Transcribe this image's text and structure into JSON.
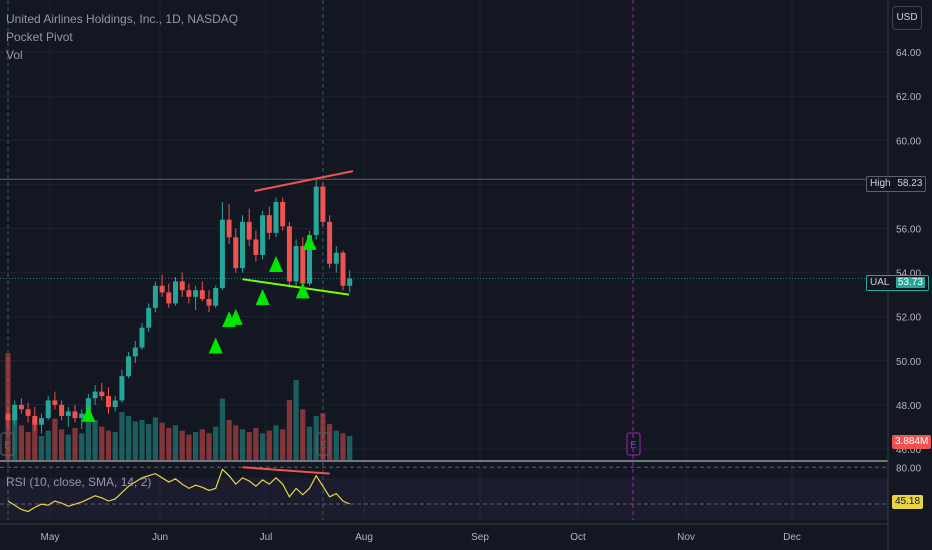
{
  "legend": {
    "title": "United Airlines Holdings, Inc., 1D, NASDAQ",
    "indicator1": "Pocket Pivot",
    "indicator2": "Vol"
  },
  "currency_button": "USD",
  "price_axis": {
    "labels": [
      "64.00",
      "62.00",
      "60.00",
      "58.00",
      "56.00",
      "54.00",
      "52.00",
      "50.00",
      "48.00",
      "46.00"
    ],
    "high_label": "High",
    "high_value": "58.23",
    "ticker_label": "UAL",
    "last_value": "53.73",
    "volume_value": "3.884M"
  },
  "rsi": {
    "legend": "RSI (10, close, SMA, 14, 2)",
    "axis_labels": [
      "80.00",
      "45.18"
    ],
    "value": "45.18"
  },
  "time_axis": {
    "labels": [
      "May",
      "Jun",
      "Jul",
      "Aug",
      "Sep",
      "Oct",
      "Nov",
      "Dec"
    ]
  },
  "earnings_marker": "E",
  "colors": {
    "background": "#131722",
    "up": "#26a69a",
    "down": "#ef5350",
    "signal": "#00e600",
    "trendline_upper": "#ef5350",
    "trendline_lower": "#76ff03",
    "rsi_line": "#e8d347",
    "earnings_future": "#9c27b0"
  },
  "chart_data": {
    "type": "candlestick",
    "ylim": [
      45.5,
      65.0
    ],
    "current_price": 53.73,
    "high_marker": 58.23,
    "candles": [
      [
        47.6,
        47.9,
        46.9,
        47.3
      ],
      [
        47.3,
        48.2,
        47.1,
        48.0
      ],
      [
        48.0,
        48.3,
        47.6,
        47.8
      ],
      [
        47.8,
        48.1,
        47.2,
        47.5
      ],
      [
        47.5,
        47.9,
        46.8,
        47.1
      ],
      [
        47.1,
        47.6,
        46.7,
        47.4
      ],
      [
        47.4,
        48.4,
        47.3,
        48.2
      ],
      [
        48.2,
        48.6,
        47.8,
        48.0
      ],
      [
        48.0,
        48.2,
        47.3,
        47.5
      ],
      [
        47.5,
        47.9,
        47.0,
        47.7
      ],
      [
        47.7,
        48.0,
        47.2,
        47.4
      ],
      [
        47.4,
        47.8,
        46.9,
        47.6
      ],
      [
        47.6,
        48.5,
        47.5,
        48.3
      ],
      [
        48.3,
        48.9,
        48.0,
        48.6
      ],
      [
        48.6,
        49.0,
        48.2,
        48.4
      ],
      [
        48.4,
        48.8,
        47.6,
        47.9
      ],
      [
        47.9,
        48.4,
        47.7,
        48.2
      ],
      [
        48.2,
        49.6,
        48.1,
        49.3
      ],
      [
        49.3,
        50.4,
        49.2,
        50.2
      ],
      [
        50.2,
        50.9,
        49.9,
        50.6
      ],
      [
        50.6,
        51.7,
        50.5,
        51.5
      ],
      [
        51.5,
        52.6,
        51.3,
        52.4
      ],
      [
        52.4,
        53.6,
        52.2,
        53.4
      ],
      [
        53.4,
        53.9,
        52.9,
        53.1
      ],
      [
        53.1,
        53.5,
        52.4,
        52.6
      ],
      [
        52.6,
        53.8,
        52.5,
        53.6
      ],
      [
        53.6,
        54.0,
        52.9,
        53.2
      ],
      [
        53.2,
        53.5,
        52.6,
        52.9
      ],
      [
        52.9,
        53.4,
        52.3,
        53.2
      ],
      [
        53.2,
        53.6,
        52.7,
        52.8
      ],
      [
        52.8,
        53.2,
        52.2,
        52.5
      ],
      [
        52.5,
        53.4,
        52.4,
        53.3
      ],
      [
        53.3,
        57.2,
        53.2,
        56.4
      ],
      [
        56.4,
        57.1,
        55.3,
        55.6
      ],
      [
        55.6,
        56.0,
        54.0,
        54.2
      ],
      [
        54.2,
        56.6,
        54.0,
        56.3
      ],
      [
        56.3,
        56.9,
        55.2,
        55.5
      ],
      [
        55.5,
        55.9,
        54.5,
        54.8
      ],
      [
        54.8,
        56.8,
        54.6,
        56.6
      ],
      [
        56.6,
        57.0,
        55.5,
        55.8
      ],
      [
        55.8,
        57.4,
        55.6,
        57.2
      ],
      [
        57.2,
        57.4,
        55.9,
        56.1
      ],
      [
        56.1,
        56.3,
        53.4,
        53.6
      ],
      [
        53.6,
        55.5,
        53.4,
        55.2
      ],
      [
        55.2,
        55.6,
        53.2,
        53.5
      ],
      [
        53.5,
        55.9,
        53.4,
        55.7
      ],
      [
        55.7,
        58.2,
        55.5,
        57.9
      ],
      [
        57.9,
        58.1,
        56.1,
        56.3
      ],
      [
        56.3,
        56.6,
        54.2,
        54.4
      ],
      [
        54.4,
        55.2,
        54.0,
        54.9
      ],
      [
        54.9,
        55.0,
        53.2,
        53.4
      ],
      [
        53.4,
        54.1,
        53.1,
        53.73
      ]
    ],
    "volume": [
      8.0,
      3.5,
      2.6,
      2.1,
      3.0,
      1.8,
      2.2,
      3.1,
      2.3,
      1.9,
      2.4,
      2.0,
      4.2,
      3.0,
      2.5,
      2.2,
      2.1,
      3.6,
      3.3,
      2.9,
      3.0,
      2.7,
      3.2,
      2.8,
      2.4,
      2.6,
      2.2,
      1.9,
      2.1,
      2.3,
      2.0,
      2.5,
      4.6,
      3.0,
      2.6,
      2.3,
      2.1,
      2.4,
      2.0,
      2.2,
      2.6,
      2.3,
      4.5,
      6.0,
      3.8,
      2.5,
      3.3,
      3.5,
      2.7,
      2.2,
      2.0,
      1.8
    ],
    "rsi": [
      48,
      44,
      40,
      38,
      42,
      45,
      44,
      48,
      46,
      43,
      45,
      47,
      50,
      53,
      51,
      48,
      50,
      56,
      62,
      66,
      70,
      72,
      74,
      70,
      66,
      69,
      64,
      60,
      63,
      61,
      58,
      60,
      78,
      72,
      64,
      70,
      67,
      62,
      68,
      64,
      70,
      64,
      52,
      60,
      54,
      60,
      72,
      62,
      52,
      55,
      48,
      45.18
    ],
    "rsi_levels": [
      80,
      45.18
    ],
    "signals": [
      {
        "index": 12,
        "price": 47.5
      },
      {
        "index": 31,
        "price": 50.6
      },
      {
        "index": 33,
        "price": 51.8
      },
      {
        "index": 34,
        "price": 51.9
      },
      {
        "index": 38,
        "price": 52.8
      },
      {
        "index": 40,
        "price": 54.3
      },
      {
        "index": 44,
        "price": 53.1
      },
      {
        "index": 45,
        "price": 55.3
      }
    ],
    "trendlines": [
      {
        "from": [
          0,
          57.7
        ],
        "to": [
          1,
          58.6
        ]
      },
      {
        "from": [
          0,
          53.7
        ],
        "to": [
          1,
          53.0
        ]
      }
    ]
  }
}
